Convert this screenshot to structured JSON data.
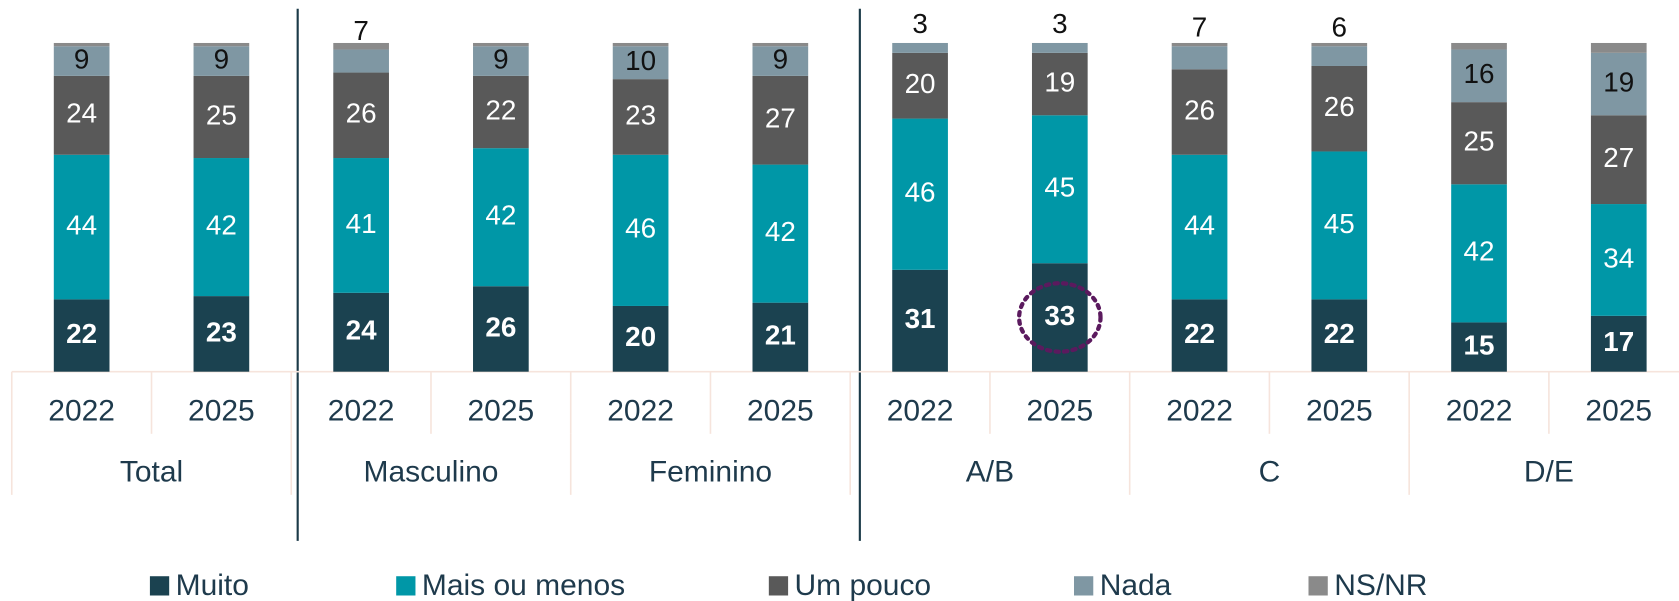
{
  "chart_data": {
    "type": "stacked_bar",
    "categories": [
      "2022",
      "2025",
      "2022",
      "2025",
      "2022",
      "2025",
      "2022",
      "2025",
      "2022",
      "2025",
      "2022",
      "2025"
    ],
    "groups": [
      {
        "name": "Total",
        "size": 2
      },
      {
        "name": "Masculino",
        "size": 2
      },
      {
        "name": "Feminino",
        "size": 2
      },
      {
        "name": "A/B",
        "size": 2
      },
      {
        "name": "C",
        "size": 2
      },
      {
        "name": "D/E",
        "size": 2
      }
    ],
    "series": [
      {
        "name": "Muito",
        "color": "#1b4250",
        "label_color": "#ffffff",
        "bold": true,
        "values": [
          22,
          23,
          24,
          26,
          20,
          21,
          31,
          33,
          22,
          22,
          15,
          17
        ]
      },
      {
        "name": "Mais ou menos",
        "color": "#0097a7",
        "label_color": "#ffffff",
        "values": [
          44,
          42,
          41,
          42,
          46,
          42,
          46,
          45,
          44,
          45,
          42,
          34
        ]
      },
      {
        "name": "Um pouco",
        "color": "#595959",
        "label_color": "#ffffff",
        "values": [
          24,
          25,
          26,
          22,
          23,
          27,
          20,
          19,
          26,
          26,
          25,
          27
        ]
      },
      {
        "name": "Nada",
        "color": "#7f97a3",
        "label_color": "#111111",
        "values": [
          9,
          9,
          7,
          9,
          10,
          9,
          3,
          3,
          7,
          6,
          16,
          19
        ]
      },
      {
        "name": "NS/NR",
        "color": "#8a8a8a",
        "show_labels": false,
        "values": [
          1,
          1,
          2,
          1,
          1,
          1,
          0,
          0,
          1,
          1,
          2,
          3
        ]
      }
    ],
    "ylim": [
      0,
      100
    ],
    "highlight": {
      "series": 0,
      "index": 7
    }
  }
}
